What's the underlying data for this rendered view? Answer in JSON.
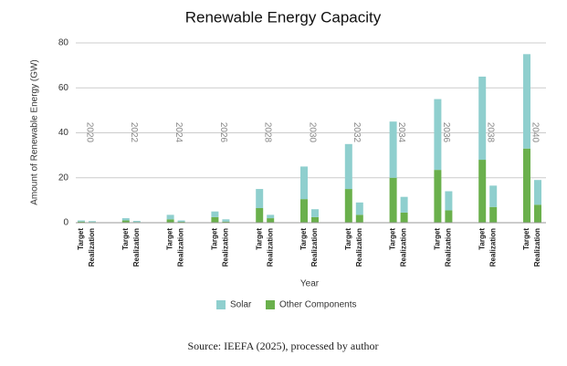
{
  "chart_data": {
    "type": "stacked_bar",
    "title": "Renewable Energy Capacity",
    "x_label": "Year",
    "y_label": "Amount of Renewable Energy (GW)",
    "source": "Source: IEEFA (2025), processed by author",
    "groups": [
      "2020",
      "2022",
      "2024",
      "2026",
      "2028",
      "2030",
      "2032",
      "2034",
      "2036",
      "2038",
      "2040"
    ],
    "categories": [
      "Target",
      "Realization",
      "Target",
      "Realization",
      "Target",
      "Realization",
      "Target",
      "Realization",
      "Target",
      "Realization",
      "Target",
      "Realization",
      "Target",
      "Realization",
      "Target",
      "Realization",
      "Target",
      "Realization",
      "Target",
      "Realization",
      "Target",
      "Realization"
    ],
    "series": [
      {
        "name": "Solar",
        "color": "#8fcfce",
        "values": [
          0.5,
          0.4,
          1,
          0.5,
          2,
          0.6,
          2.5,
          1,
          8.5,
          1.5,
          14.5,
          3.5,
          20,
          5.5,
          25,
          7,
          31.5,
          8.5,
          37,
          9.5,
          42,
          11
        ]
      },
      {
        "name": "Other Components",
        "color": "#6ab04c",
        "values": [
          0.5,
          0.3,
          1,
          0.3,
          1.5,
          0.4,
          2.5,
          0.5,
          6.5,
          2,
          10.5,
          2.5,
          15,
          3.5,
          20,
          4.5,
          23.5,
          5.5,
          28,
          7,
          33,
          8
        ]
      }
    ],
    "ylim": [
      0,
      80
    ],
    "yticks": [
      0,
      20,
      40,
      60,
      80
    ],
    "grid": true
  }
}
